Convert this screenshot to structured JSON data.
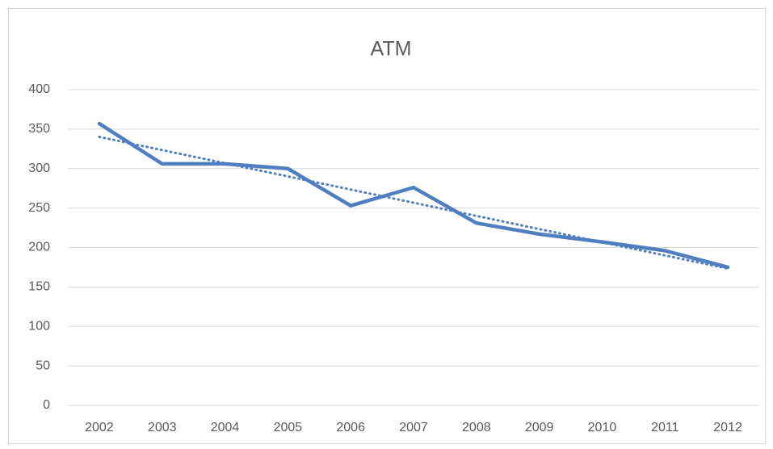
{
  "chart_data": {
    "type": "line",
    "title": "ATM",
    "categories": [
      "2002",
      "2003",
      "2004",
      "2005",
      "2006",
      "2007",
      "2008",
      "2009",
      "2010",
      "2011",
      "2012"
    ],
    "values": [
      357,
      306,
      306,
      300,
      253,
      276,
      231,
      217,
      207,
      196,
      175
    ],
    "color": "#4f7fc0",
    "ylim": [
      0,
      400
    ],
    "yticks": [
      0,
      50,
      100,
      150,
      200,
      250,
      300,
      350,
      400
    ],
    "grid": true,
    "trendline": "linear"
  }
}
